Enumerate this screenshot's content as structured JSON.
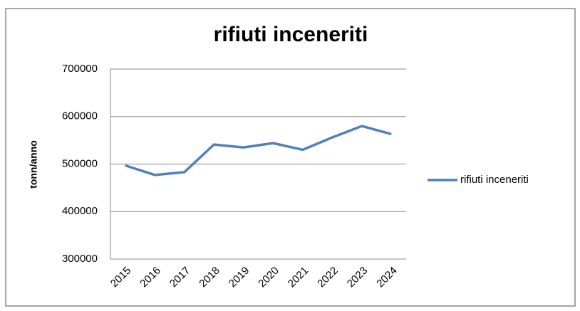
{
  "chart_data": {
    "type": "line",
    "title": "rifiuti inceneriti",
    "ylabel": "tonn/anno",
    "categories": [
      "2015",
      "2016",
      "2017",
      "2018",
      "2019",
      "2020",
      "2021",
      "2022",
      "2023",
      "2024"
    ],
    "series": [
      {
        "name": "rifiuti inceneriti",
        "color": "#4f81bd",
        "values": [
          497000,
          477000,
          483000,
          541000,
          535000,
          544000,
          530000,
          556000,
          580000,
          563000
        ]
      }
    ],
    "ylim": [
      300000,
      700000
    ],
    "yticks": [
      300000,
      400000,
      500000,
      600000,
      700000
    ],
    "grid": true,
    "legend": "right"
  }
}
